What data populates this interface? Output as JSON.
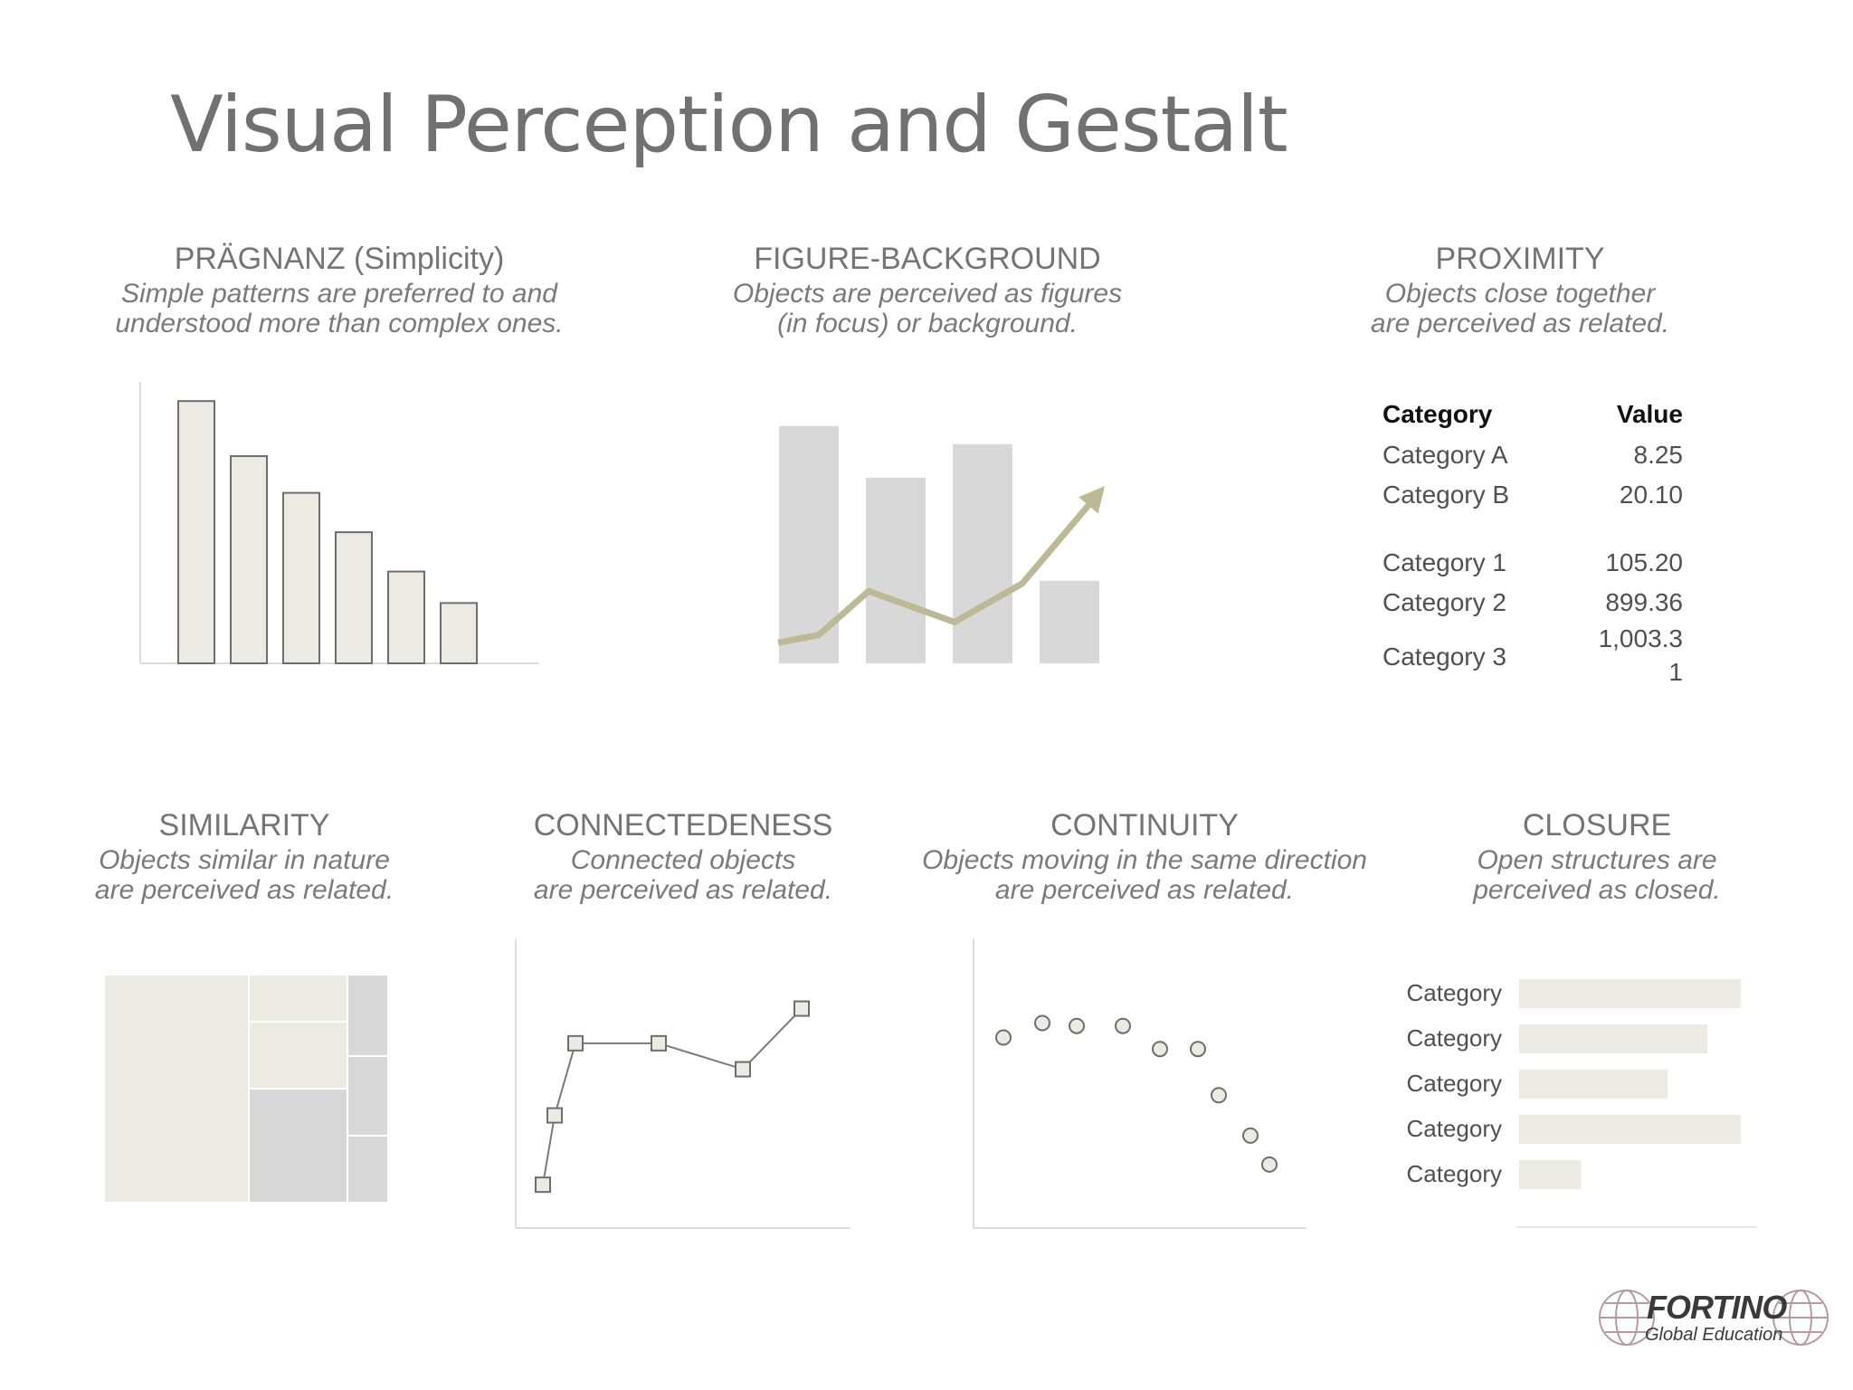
{
  "slide_title": "Visual Perception and Gestalt",
  "panels": {
    "pragnanz": {
      "heading": "PRÄGNANZ (Simplicity)",
      "line1": "Simple patterns are preferred to and",
      "line2": "understood more than complex ones."
    },
    "figure": {
      "heading": "FIGURE-BACKGROUND",
      "line1": "Objects are perceived as figures",
      "line2": "(in focus) or background."
    },
    "proximity": {
      "heading": "PROXIMITY",
      "line1": "Objects close together",
      "line2": "are perceived as related."
    },
    "similarity": {
      "heading": "SIMILARITY",
      "line1": "Objects similar in nature",
      "line2": "are perceived as related."
    },
    "connectedness": {
      "heading": "CONNECTEDENESS",
      "line1": "Connected objects",
      "line2": "are perceived as related."
    },
    "continuity": {
      "heading": "CONTINUITY",
      "line1": "Objects moving in the same direction",
      "line2": "are perceived as related."
    },
    "closure": {
      "heading": "CLOSURE",
      "line1": "Open structures are",
      "line2": "perceived as closed."
    }
  },
  "proximity_table": {
    "header": {
      "category": "Category",
      "value": "Value"
    },
    "rows": [
      {
        "category": "Category A",
        "value": "8.25"
      },
      {
        "category": "Category B",
        "value": "20.10"
      },
      {
        "category": "Category 1",
        "value": "105.20"
      },
      {
        "category": "Category 2",
        "value": "899.36"
      },
      {
        "category": "Category 3",
        "value": "1,003.3",
        "value_wrap": "1"
      }
    ]
  },
  "logo": {
    "name": "FORTINO",
    "subtitle": "Global Education"
  },
  "colors": {
    "bar_fill": "#ecebe3",
    "bar_stroke": "#6e6e6e",
    "grey_bar": "#d9d8d8",
    "olive_line": "#bdb896"
  },
  "chart_data": [
    {
      "id": "pragnanz",
      "type": "bar",
      "values": [
        100,
        79,
        65,
        50,
        35,
        23
      ],
      "ylim": [
        0,
        108
      ]
    },
    {
      "id": "figure-background",
      "type": "bar",
      "values": [
        92,
        72,
        85,
        32
      ],
      "line": [
        8,
        11,
        28,
        16,
        31,
        65
      ],
      "ylim": [
        0,
        100
      ]
    },
    {
      "id": "similarity",
      "type": "heatmap",
      "values": [
        55,
        7,
        13,
        19,
        6,
        6,
        6
      ]
    },
    {
      "id": "connectedness",
      "type": "line",
      "values": [
        15,
        39,
        64,
        64,
        55,
        76
      ],
      "ylim": [
        0,
        100
      ]
    },
    {
      "id": "continuity",
      "type": "scatter",
      "values": [
        66,
        71,
        70,
        70,
        62,
        62,
        46,
        32,
        22
      ],
      "ylim": [
        0,
        100
      ]
    },
    {
      "id": "closure",
      "type": "bar",
      "categories": [
        "Category",
        "Category",
        "Category",
        "Category",
        "Category"
      ],
      "values": [
        100,
        85,
        67,
        100,
        28
      ],
      "xlim": [
        0,
        100
      ]
    }
  ]
}
